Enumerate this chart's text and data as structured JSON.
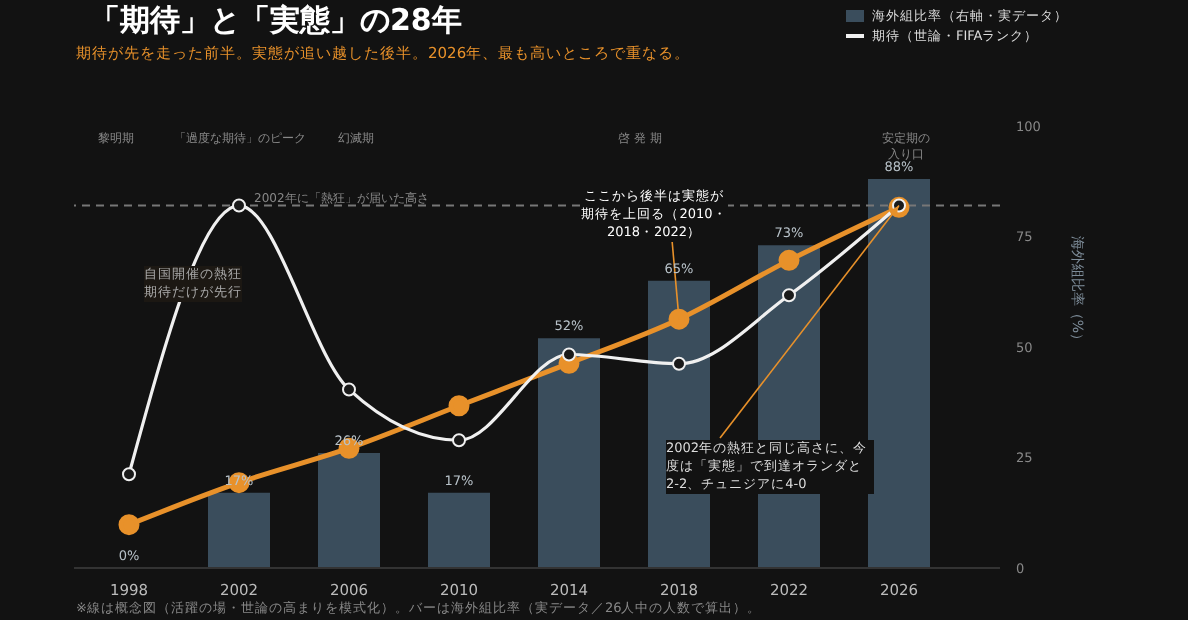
{
  "chart_data": {
    "type": "bar",
    "title": "「期待」と「実態」の28年",
    "subtitle": "期待が先を走った前半。実態が追い越した後半。2026年、最も高いところで重なる。",
    "ylabel": "海外組比率（%）",
    "categories": [
      "1998",
      "2002",
      "2006",
      "2010",
      "2014",
      "2018",
      "2022",
      "2026"
    ],
    "series": [
      {
        "name": "海外組比率（右軸・実データ）",
        "color": "#3a4d5c",
        "values": [
          0,
          17,
          26,
          17,
          52,
          65,
          73,
          88
        ],
        "value_labels": [
          "0%",
          "17%",
          "26%",
          "17%",
          "52%",
          "65%",
          "73%",
          "88%"
        ]
      },
      {
        "type": "line",
        "color": "#e8912a",
        "values": [
          9.8,
          19.3,
          27.1,
          36.7,
          46.3,
          56.3,
          69.6,
          81.6
        ]
      },
      {
        "type": "line",
        "name": "期待（世論・FIFAランク）",
        "color": "#f0f0f0",
        "values": [
          21.2,
          82,
          40.4,
          28.9,
          48.3,
          46.2,
          61.7,
          82
        ]
      }
    ],
    "ylim": [
      0,
      100
    ],
    "yticks": [
      0,
      25,
      50,
      75,
      100
    ],
    "ref_lines": [
      {
        "axis": "y",
        "value": 82,
        "label": "2002年に「熱狂」が届いた高さ",
        "color": "#777777",
        "line_style": "dashed"
      }
    ],
    "annotations": [
      "黎明期",
      "「過度な期待」のピーク",
      "幻滅期",
      "啓 発 期",
      "安定期の入り口",
      "自国開催の熱狂期待だけが先行",
      {
        "text": "ここから後半は実態が期待を上回る（2010・2018・2022）",
        "x": "2018",
        "y": 56.3
      },
      {
        "text": "2002年の熱狂と同じ高さに、今度は「実態」で到達オランダと2-2、チュニジアに4-0",
        "x": "2026",
        "y": 82
      },
      "※線は概念図（活躍の場・世論の高まりを模式化）。バーは海外組比率（実データ／26人中の人数で算出）。"
    ],
    "legend": "top right",
    "marker": "circle",
    "line_style": "solid"
  }
}
